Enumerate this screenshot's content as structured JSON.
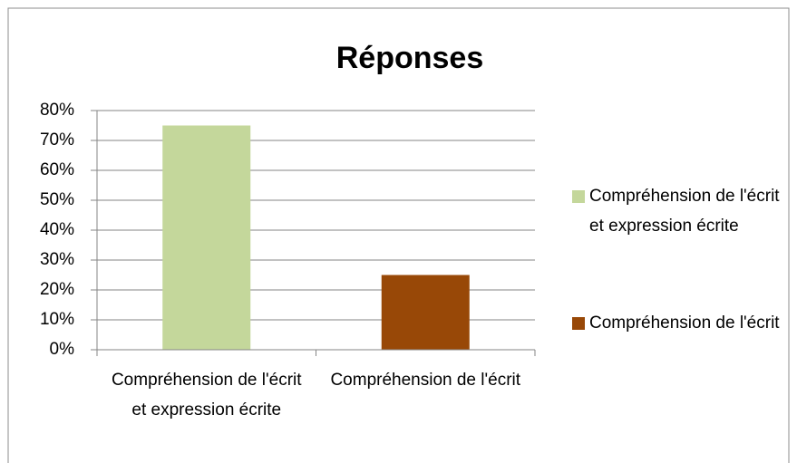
{
  "chart_data": {
    "type": "bar",
    "title": "Réponses",
    "categories": [
      "Compréhension de l'écrit et expression écrite",
      "Compréhension de l'écrit"
    ],
    "values": [
      75,
      25
    ],
    "colors": [
      "#c4d79b",
      "#984807"
    ],
    "ylim": [
      0,
      80
    ],
    "yticks": [
      {
        "value": 0,
        "label": "0%"
      },
      {
        "value": 10,
        "label": "10%"
      },
      {
        "value": 20,
        "label": "20%"
      },
      {
        "value": 30,
        "label": "30%"
      },
      {
        "value": 40,
        "label": "40%"
      },
      {
        "value": 50,
        "label": "50%"
      },
      {
        "value": 60,
        "label": "60%"
      },
      {
        "value": 70,
        "label": "70%"
      },
      {
        "value": 80,
        "label": "80%"
      }
    ],
    "grid": true,
    "legend": "right"
  }
}
